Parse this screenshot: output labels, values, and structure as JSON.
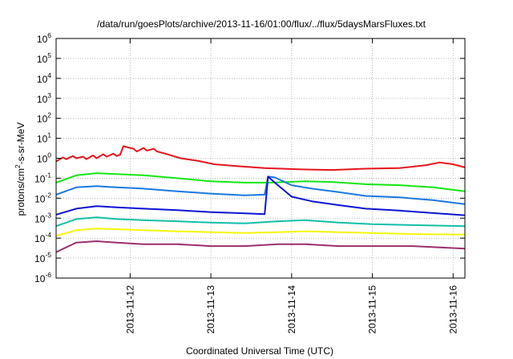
{
  "chart_data": {
    "type": "line",
    "title": "/data/run/goesPlots/archive/2013-11-16/01:00/flux/../flux/5daysMarsFluxes.txt",
    "xlabel": "Coordinated Universal Time (UTC)",
    "ylabel": {
      "base": "protons/cm",
      "sup": "2",
      "rest": "-s-sr-MeV"
    },
    "x_scale": "time",
    "y_scale": "log",
    "xlim": [
      "2013-11-11T02:00",
      "2013-11-16T03:30"
    ],
    "ylim": [
      1e-06,
      1000000.0
    ],
    "x_ticks": [
      "2013-11-12",
      "2013-11-13",
      "2013-11-14",
      "2013-11-15",
      "2013-11-16"
    ],
    "y_ticks": [
      {
        "base": "10",
        "exp": "-6",
        "value": -6
      },
      {
        "base": "10",
        "exp": "-5",
        "value": -5
      },
      {
        "base": "10",
        "exp": "-4",
        "value": -4
      },
      {
        "base": "10",
        "exp": "-3",
        "value": -3
      },
      {
        "base": "10",
        "exp": "-2",
        "value": -2
      },
      {
        "base": "10",
        "exp": "-1",
        "value": -1
      },
      {
        "base": "10",
        "exp": "0",
        "value": 0
      },
      {
        "base": "10",
        "exp": "1",
        "value": 1
      },
      {
        "base": "10",
        "exp": "2",
        "value": 2
      },
      {
        "base": "10",
        "exp": "3",
        "value": 3
      },
      {
        "base": "10",
        "exp": "4",
        "value": 4
      },
      {
        "base": "10",
        "exp": "5",
        "value": 5
      },
      {
        "base": "10",
        "exp": "6",
        "value": 6
      }
    ],
    "grid": true,
    "legend": "none",
    "series": [
      {
        "color": "#e6141c",
        "points": [
          [
            "2013-11-11T02:00",
            0.7
          ],
          [
            "2013-11-11T04:00",
            1.1
          ],
          [
            "2013-11-11T05:00",
            0.9
          ],
          [
            "2013-11-11T07:00",
            1.3
          ],
          [
            "2013-11-11T08:00",
            1.0
          ],
          [
            "2013-11-11T10:00",
            1.2
          ],
          [
            "2013-11-11T11:00",
            0.9
          ],
          [
            "2013-11-11T13:00",
            1.4
          ],
          [
            "2013-11-11T14:00",
            1.0
          ],
          [
            "2013-11-11T16:00",
            1.6
          ],
          [
            "2013-11-11T17:00",
            1.2
          ],
          [
            "2013-11-11T19:00",
            1.7
          ],
          [
            "2013-11-11T20:00",
            1.3
          ],
          [
            "2013-11-11T21:00",
            1.5
          ],
          [
            "2013-11-11T22:00",
            4.0
          ],
          [
            "2013-11-12T01:00",
            3.0
          ],
          [
            "2013-11-12T02:00",
            2.2
          ],
          [
            "2013-11-12T04:00",
            3.3
          ],
          [
            "2013-11-12T05:00",
            2.4
          ],
          [
            "2013-11-12T07:00",
            3.0
          ],
          [
            "2013-11-12T08:00",
            2.2
          ],
          [
            "2013-11-12T11:00",
            1.6
          ],
          [
            "2013-11-12T15:00",
            1.0
          ],
          [
            "2013-11-12T20:00",
            0.75
          ],
          [
            "2013-11-13T01:00",
            0.5
          ],
          [
            "2013-11-13T08:00",
            0.4
          ],
          [
            "2013-11-13T16:00",
            0.32
          ],
          [
            "2013-11-14T02:00",
            0.28
          ],
          [
            "2013-11-14T12:00",
            0.26
          ],
          [
            "2013-11-14T22:00",
            0.3
          ],
          [
            "2013-11-15T08:00",
            0.32
          ],
          [
            "2013-11-15T16:00",
            0.45
          ],
          [
            "2013-11-15T20:00",
            0.62
          ],
          [
            "2013-11-16T00:00",
            0.5
          ],
          [
            "2013-11-16T03:30",
            0.35
          ]
        ]
      },
      {
        "color": "#14e614",
        "points": [
          [
            "2013-11-11T02:00",
            0.06
          ],
          [
            "2013-11-11T08:00",
            0.14
          ],
          [
            "2013-11-11T14:00",
            0.18
          ],
          [
            "2013-11-11T20:00",
            0.16
          ],
          [
            "2013-11-12T04:00",
            0.14
          ],
          [
            "2013-11-12T14:00",
            0.1
          ],
          [
            "2013-11-13T00:00",
            0.07
          ],
          [
            "2013-11-13T10:00",
            0.06
          ],
          [
            "2013-11-13T18:00",
            0.06
          ],
          [
            "2013-11-14T04:00",
            0.07
          ],
          [
            "2013-11-14T12:00",
            0.065
          ],
          [
            "2013-11-14T22:00",
            0.05
          ],
          [
            "2013-11-15T08:00",
            0.045
          ],
          [
            "2013-11-15T18:00",
            0.035
          ],
          [
            "2013-11-16T03:30",
            0.022
          ]
        ]
      },
      {
        "color": "#1a78e0",
        "points": [
          [
            "2013-11-11T02:00",
            0.015
          ],
          [
            "2013-11-11T08:00",
            0.035
          ],
          [
            "2013-11-11T14:00",
            0.04
          ],
          [
            "2013-11-11T20:00",
            0.035
          ],
          [
            "2013-11-12T04:00",
            0.03
          ],
          [
            "2013-11-12T14:00",
            0.022
          ],
          [
            "2013-11-13T00:00",
            0.017
          ],
          [
            "2013-11-13T10:00",
            0.014
          ],
          [
            "2013-11-13T16:00",
            0.015
          ],
          [
            "2013-11-13T17:00",
            0.12
          ],
          [
            "2013-11-13T19:00",
            0.11
          ],
          [
            "2013-11-14T00:00",
            0.045
          ],
          [
            "2013-11-14T06:00",
            0.03
          ],
          [
            "2013-11-14T14:00",
            0.02
          ],
          [
            "2013-11-14T22:00",
            0.013
          ],
          [
            "2013-11-15T08:00",
            0.011
          ],
          [
            "2013-11-15T18:00",
            0.008
          ],
          [
            "2013-11-16T03:30",
            0.005
          ]
        ]
      },
      {
        "color": "#0a14d2",
        "points": [
          [
            "2013-11-11T02:00",
            0.0015
          ],
          [
            "2013-11-11T08:00",
            0.003
          ],
          [
            "2013-11-11T14:00",
            0.004
          ],
          [
            "2013-11-11T20:00",
            0.0035
          ],
          [
            "2013-11-12T04:00",
            0.003
          ],
          [
            "2013-11-12T14:00",
            0.0025
          ],
          [
            "2013-11-13T00:00",
            0.002
          ],
          [
            "2013-11-13T08:00",
            0.0018
          ],
          [
            "2013-11-13T16:00",
            0.0016
          ],
          [
            "2013-11-13T17:00",
            0.12
          ],
          [
            "2013-11-13T19:00",
            0.06
          ],
          [
            "2013-11-14T00:00",
            0.012
          ],
          [
            "2013-11-14T06:00",
            0.007
          ],
          [
            "2013-11-14T14:00",
            0.0045
          ],
          [
            "2013-11-14T22:00",
            0.003
          ],
          [
            "2013-11-15T08:00",
            0.0024
          ],
          [
            "2013-11-15T18:00",
            0.0018
          ],
          [
            "2013-11-16T03:30",
            0.0014
          ]
        ]
      },
      {
        "color": "#12bfa6",
        "points": [
          [
            "2013-11-11T02:00",
            0.0004
          ],
          [
            "2013-11-11T08:00",
            0.0009
          ],
          [
            "2013-11-11T14:00",
            0.0011
          ],
          [
            "2013-11-11T20:00",
            0.0009
          ],
          [
            "2013-11-12T04:00",
            0.0008
          ],
          [
            "2013-11-12T14:00",
            0.0007
          ],
          [
            "2013-11-13T00:00",
            0.0006
          ],
          [
            "2013-11-13T10:00",
            0.00055
          ],
          [
            "2013-11-13T20:00",
            0.0007
          ],
          [
            "2013-11-14T04:00",
            0.0008
          ],
          [
            "2013-11-14T14:00",
            0.0006
          ],
          [
            "2013-11-15T00:00",
            0.0005
          ],
          [
            "2013-11-15T12:00",
            0.00045
          ],
          [
            "2013-11-16T03:30",
            0.0004
          ]
        ]
      },
      {
        "color": "#f5f50a",
        "points": [
          [
            "2013-11-11T02:00",
            0.00013
          ],
          [
            "2013-11-11T08:00",
            0.00025
          ],
          [
            "2013-11-11T14:00",
            0.0003
          ],
          [
            "2013-11-11T20:00",
            0.00028
          ],
          [
            "2013-11-12T04:00",
            0.00025
          ],
          [
            "2013-11-12T14:00",
            0.00022
          ],
          [
            "2013-11-13T00:00",
            0.0002
          ],
          [
            "2013-11-13T10:00",
            0.00018
          ],
          [
            "2013-11-13T20:00",
            0.0002
          ],
          [
            "2013-11-14T04:00",
            0.00022
          ],
          [
            "2013-11-14T14:00",
            0.0002
          ],
          [
            "2013-11-15T00:00",
            0.00018
          ],
          [
            "2013-11-15T12:00",
            0.00016
          ],
          [
            "2013-11-16T03:30",
            0.00015
          ]
        ]
      },
      {
        "color": "#9b2f6e",
        "points": [
          [
            "2013-11-11T02:00",
            2e-05
          ],
          [
            "2013-11-11T08:00",
            6e-05
          ],
          [
            "2013-11-11T14:00",
            7e-05
          ],
          [
            "2013-11-11T20:00",
            6e-05
          ],
          [
            "2013-11-12T04:00",
            5e-05
          ],
          [
            "2013-11-12T14:00",
            5e-05
          ],
          [
            "2013-11-13T00:00",
            4e-05
          ],
          [
            "2013-11-13T10:00",
            4e-05
          ],
          [
            "2013-11-13T20:00",
            5e-05
          ],
          [
            "2013-11-14T04:00",
            5e-05
          ],
          [
            "2013-11-14T14:00",
            4e-05
          ],
          [
            "2013-11-15T00:00",
            4e-05
          ],
          [
            "2013-11-15T12:00",
            4e-05
          ],
          [
            "2013-11-16T03:30",
            3e-05
          ]
        ]
      }
    ]
  }
}
